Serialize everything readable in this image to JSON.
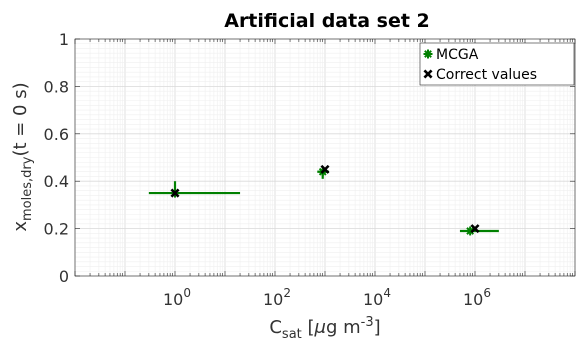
{
  "chart_data": {
    "type": "scatter",
    "title": "Artificial data set 2",
    "xscale": "log",
    "xlim": [
      0.01,
      100000000
    ],
    "ylim": [
      0,
      1
    ],
    "grid": true,
    "legend_position": "top-right",
    "ylabel": {
      "base": "x",
      "sub": "moles,dry",
      "suffix": "(t = 0 s)"
    },
    "xlabel": {
      "base": "C",
      "sub": "sat",
      "unit_pre": " [",
      "mu": "μ",
      "unit_mid": "g m",
      "sup": "-3",
      "unit_post": "]"
    },
    "y_ticks": [
      "0",
      "0.2",
      "0.4",
      "0.6",
      "0.8",
      "1"
    ],
    "y_tick_values": [
      0,
      0.2,
      0.4,
      0.6,
      0.8,
      1
    ],
    "x_ticks": [
      {
        "value": 1,
        "base": "10",
        "exp": "0"
      },
      {
        "value": 100,
        "base": "10",
        "exp": "2"
      },
      {
        "value": 10000,
        "base": "10",
        "exp": "4"
      },
      {
        "value": 1000000,
        "base": "10",
        "exp": "6"
      }
    ],
    "series": [
      {
        "name": "MCGA",
        "color": "#008000",
        "marker": "star",
        "points": [
          {
            "x": 1,
            "y": 0.35,
            "xlow": 0.3,
            "xhigh": 20,
            "ylow": 0.34,
            "yhigh": 0.4
          },
          {
            "x": 900,
            "y": 0.44,
            "xlow": 700,
            "xhigh": 1200,
            "ylow": 0.41,
            "yhigh": 0.45
          },
          {
            "x": 800000,
            "y": 0.19,
            "xlow": 500000,
            "xhigh": 3000000,
            "ylow": 0.18,
            "yhigh": 0.2
          }
        ]
      },
      {
        "name": "Correct values",
        "color": "#000000",
        "marker": "x",
        "points": [
          {
            "x": 1,
            "y": 0.35
          },
          {
            "x": 1000,
            "y": 0.45
          },
          {
            "x": 1000000,
            "y": 0.2
          }
        ]
      }
    ]
  }
}
